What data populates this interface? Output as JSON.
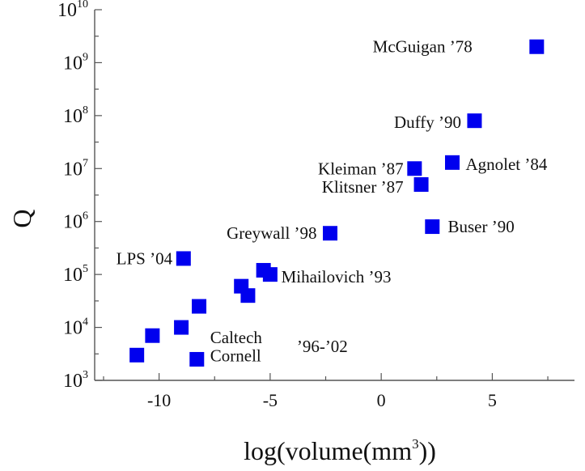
{
  "chart_data": {
    "type": "scatter",
    "title": "",
    "xlabel": "log(volume(mm3))",
    "xlabel_base": "log(volume(mm",
    "xlabel_exp": "3",
    "xlabel_close": "))",
    "ylabel": "Q",
    "xlim": [
      -12.9,
      8.7
    ],
    "ylim_log10": [
      3,
      10
    ],
    "y_scale": "log",
    "grid": false,
    "legend": "none",
    "marker_color": "#0000ee",
    "marker": "square",
    "x_ticks": [
      {
        "value": -10,
        "label": "-10"
      },
      {
        "value": -5,
        "label": "-5"
      },
      {
        "value": 0,
        "label": "0"
      },
      {
        "value": 5,
        "label": "5"
      }
    ],
    "y_ticks": [
      {
        "exp": 3,
        "base": "10",
        "sup": "3"
      },
      {
        "exp": 4,
        "base": "10",
        "sup": "4"
      },
      {
        "exp": 5,
        "base": "10",
        "sup": "5"
      },
      {
        "exp": 6,
        "base": "10",
        "sup": "6"
      },
      {
        "exp": 7,
        "base": "10",
        "sup": "7"
      },
      {
        "exp": 8,
        "base": "10",
        "sup": "8"
      },
      {
        "exp": 9,
        "base": "10",
        "sup": "9"
      },
      {
        "exp": 10,
        "base": "10",
        "sup": "10"
      }
    ],
    "points": [
      {
        "x": 7.0,
        "y": 2000000000
      },
      {
        "x": 4.2,
        "y": 80000000
      },
      {
        "x": 3.2,
        "y": 13000000
      },
      {
        "x": 1.5,
        "y": 10000000
      },
      {
        "x": 1.8,
        "y": 5000000
      },
      {
        "x": 2.3,
        "y": 800000
      },
      {
        "x": -2.3,
        "y": 600000
      },
      {
        "x": -8.9,
        "y": 200000
      },
      {
        "x": -5.3,
        "y": 120000
      },
      {
        "x": -5.0,
        "y": 100000
      },
      {
        "x": -6.3,
        "y": 60000
      },
      {
        "x": -6.0,
        "y": 40000
      },
      {
        "x": -8.2,
        "y": 25000
      },
      {
        "x": -9.0,
        "y": 10000
      },
      {
        "x": -10.3,
        "y": 7000
      },
      {
        "x": -11.0,
        "y": 3000
      },
      {
        "x": -8.3,
        "y": 2500
      }
    ],
    "annotations": [
      {
        "text": "McGuigan ’78",
        "x": 4.1,
        "y": 2000000000,
        "anchor": "end"
      },
      {
        "text": "Duffy ’90",
        "x": 3.6,
        "y": 75000000,
        "anchor": "end"
      },
      {
        "text": "Agnolet ’84",
        "x": 3.8,
        "y": 12000000,
        "anchor": "start"
      },
      {
        "text": "Kleiman ’87",
        "x": 1.0,
        "y": 10000000,
        "anchor": "end"
      },
      {
        "text": "Klitsner ’87",
        "x": 1.0,
        "y": 4500000,
        "anchor": "end"
      },
      {
        "text": "Buser ’90",
        "x": 3.0,
        "y": 800000,
        "anchor": "start"
      },
      {
        "text": "Greywall ’98",
        "x": -2.9,
        "y": 600000,
        "anchor": "end"
      },
      {
        "text": "LPS ’04",
        "x": -9.4,
        "y": 200000,
        "anchor": "end"
      },
      {
        "text": "Mihailovich ’93",
        "x": -4.5,
        "y": 90000,
        "anchor": "start"
      },
      {
        "text": "Caltech",
        "x": -7.7,
        "y": 6500,
        "anchor": "start"
      },
      {
        "text": "Cornell",
        "x": -7.7,
        "y": 2900,
        "anchor": "start"
      },
      {
        "text": "’96-’02",
        "x": -3.8,
        "y": 4400,
        "anchor": "start"
      }
    ]
  }
}
